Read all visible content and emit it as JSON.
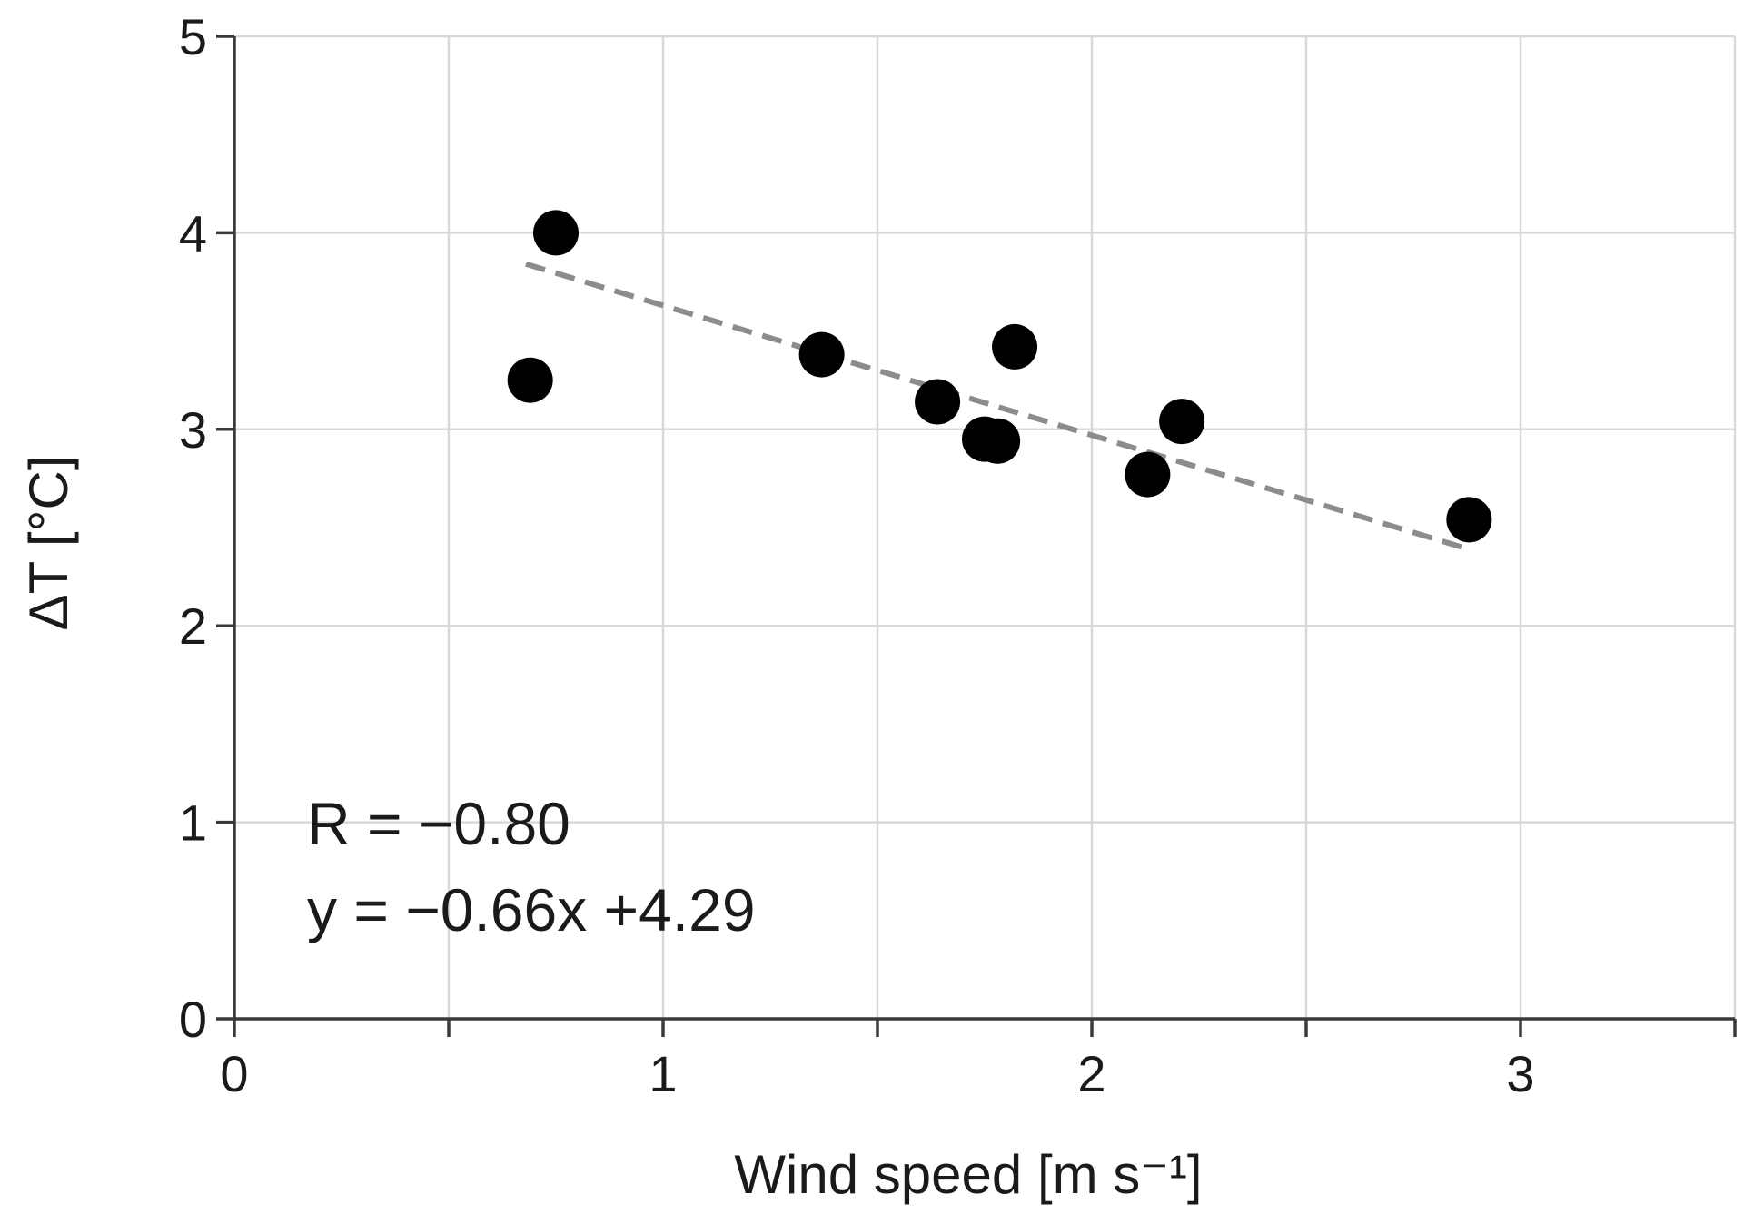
{
  "chart_data": {
    "type": "scatter",
    "xlabel": "Wind speed [m s⁻¹]",
    "ylabel": "ΔT [°C]",
    "xlim": [
      0,
      3.5
    ],
    "ylim": [
      0,
      5
    ],
    "x_tick_labels": [
      "0",
      "1",
      "2",
      "3"
    ],
    "y_tick_labels": [
      "0",
      "1",
      "2",
      "3",
      "4",
      "5"
    ],
    "x_gridlines": [
      0.5,
      1,
      1.5,
      2,
      2.5,
      3,
      3.5
    ],
    "y_gridlines": [
      1,
      2,
      3,
      4,
      5
    ],
    "grid": true,
    "series": [
      {
        "points": [
          {
            "x": 0.69,
            "y": 3.25
          },
          {
            "x": 0.75,
            "y": 4.0
          },
          {
            "x": 1.37,
            "y": 3.38
          },
          {
            "x": 1.64,
            "y": 3.14
          },
          {
            "x": 1.75,
            "y": 2.95
          },
          {
            "x": 1.78,
            "y": 2.94
          },
          {
            "x": 1.82,
            "y": 3.42
          },
          {
            "x": 2.13,
            "y": 2.77
          },
          {
            "x": 2.21,
            "y": 3.04
          },
          {
            "x": 2.88,
            "y": 2.54
          }
        ]
      }
    ],
    "trendline": {
      "slope": -0.66,
      "intercept": 4.29,
      "x_range": [
        0.68,
        2.88
      ],
      "style": "dashed",
      "color": "#8c8c8c"
    },
    "annotations": [
      "R = −0.80",
      "y = −0.66x +4.29"
    ]
  }
}
